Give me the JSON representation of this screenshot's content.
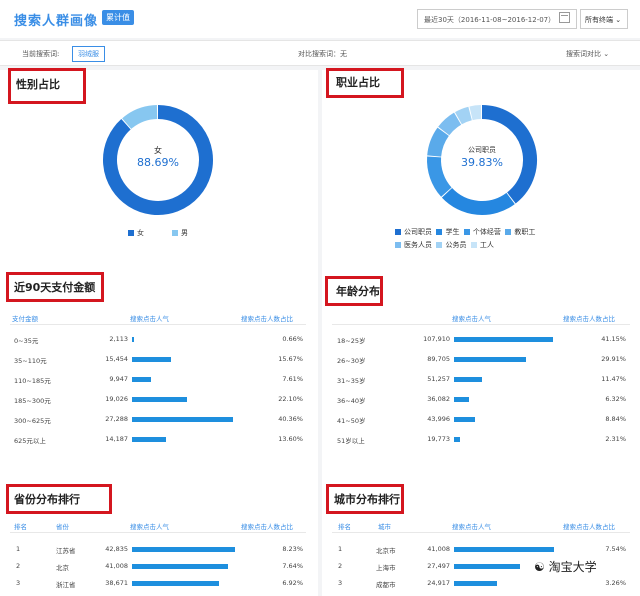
{
  "header": {
    "title": "搜索人群画像",
    "badge": "累计值",
    "date_range": "最近30天（2016-11-08~2016-12-07）",
    "terminal": "所有终端"
  },
  "toolbar": {
    "current_label": "当前搜索词:",
    "current_value": "羽绒服",
    "compare_label": "对比搜索词：无",
    "compare_button": "搜索词对比"
  },
  "gender": {
    "title": "性别占比",
    "center_label": "女",
    "center_value": "88.69%",
    "legend": [
      "女",
      "男"
    ],
    "colors": [
      "#1e6fd0",
      "#87c7f0"
    ],
    "values": [
      88.69,
      11.31
    ]
  },
  "occupation": {
    "title": "职业占比",
    "center_label": "公司职员",
    "center_value": "39.83%",
    "legend": [
      "公司职员",
      "学生",
      "个体经营",
      "教职工",
      "医务人员",
      "公务员",
      "工人"
    ],
    "colors": [
      "#1e6fd0",
      "#2587e0",
      "#3a97e6",
      "#5aaaea",
      "#7cbdf0",
      "#a2d2f4",
      "#c7e4f8"
    ],
    "values": [
      39.83,
      23.5,
      13.0,
      9.0,
      6.5,
      4.5,
      3.67
    ]
  },
  "pay": {
    "title": "近90天支付金额",
    "headers": [
      "支付金额",
      "搜索点击人气",
      "搜索点击人数占比"
    ],
    "rows": [
      {
        "label": "0~35元",
        "value": "2,113",
        "pct": "0.66%",
        "bar": 0.66
      },
      {
        "label": "35~110元",
        "value": "15,454",
        "pct": "15.67%",
        "bar": 15.67
      },
      {
        "label": "110~185元",
        "value": "9,947",
        "pct": "7.61%",
        "bar": 7.61
      },
      {
        "label": "185~300元",
        "value": "19,026",
        "pct": "22.10%",
        "bar": 22.1
      },
      {
        "label": "300~625元",
        "value": "27,288",
        "pct": "40.36%",
        "bar": 40.36
      },
      {
        "label": "625元以上",
        "value": "14,187",
        "pct": "13.60%",
        "bar": 13.6
      }
    ]
  },
  "age": {
    "title": "年龄分布",
    "headers": [
      "",
      "搜索点击人气",
      "搜索点击人数占比"
    ],
    "rows": [
      {
        "label": "18~25岁",
        "value": "107,910",
        "pct": "41.15%",
        "bar": 41.15
      },
      {
        "label": "26~30岁",
        "value": "89,705",
        "pct": "29.91%",
        "bar": 29.91
      },
      {
        "label": "31~35岁",
        "value": "51,257",
        "pct": "11.47%",
        "bar": 11.47
      },
      {
        "label": "36~40岁",
        "value": "36,082",
        "pct": "6.32%",
        "bar": 6.32
      },
      {
        "label": "41~50岁",
        "value": "43,996",
        "pct": "8.84%",
        "bar": 8.84
      },
      {
        "label": "51岁以上",
        "value": "19,773",
        "pct": "2.31%",
        "bar": 2.31
      }
    ]
  },
  "province": {
    "title": "省份分布排行",
    "headers": [
      "排名",
      "省份",
      "搜索点击人气",
      "搜索点击人数占比"
    ],
    "rows": [
      {
        "rank": "1",
        "name": "江苏省",
        "value": "42,835",
        "pct": "8.23%",
        "bar": 8.23
      },
      {
        "rank": "2",
        "name": "北京",
        "value": "41,008",
        "pct": "7.64%",
        "bar": 7.64
      },
      {
        "rank": "3",
        "name": "浙江省",
        "value": "38,671",
        "pct": "6.92%",
        "bar": 6.92
      }
    ]
  },
  "city": {
    "title": "城市分布排行",
    "headers": [
      "排名",
      "城市",
      "搜索点击人气",
      "搜索点击人数占比"
    ],
    "rows": [
      {
        "rank": "1",
        "name": "北京市",
        "value": "41,008",
        "pct": "7.54%",
        "bar": 7.54
      },
      {
        "rank": "2",
        "name": "上海市",
        "value": "27,497",
        "pct": "",
        "bar": 5.0
      },
      {
        "rank": "3",
        "name": "成都市",
        "value": "24,917",
        "pct": "3.26%",
        "bar": 3.26
      }
    ]
  },
  "watermark": "淘宝大学"
}
